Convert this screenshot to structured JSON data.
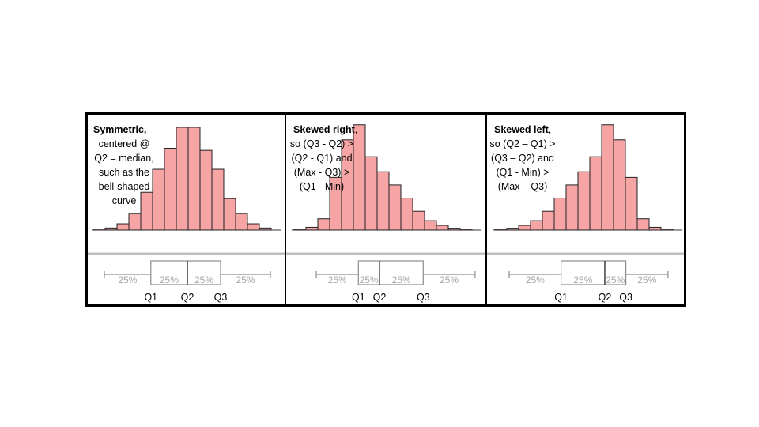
{
  "colors": {
    "bar_fill": "#f7a4a5",
    "bar_stroke": "#222222",
    "frame": "#000000",
    "divider": "#bfbfbf",
    "box_stroke": "#8c8c8c",
    "pct_text": "#a6a6a6",
    "label_text": "#000000"
  },
  "chart_data": [
    {
      "type": "bar",
      "title_bold": "Symmetric,",
      "title_rest": "",
      "caption_lines": [
        "centered @",
        "Q2 = median,",
        "such as the",
        "bell-shaped",
        "curve"
      ],
      "bins": 15,
      "values": [
        0.5,
        1,
        3,
        8,
        18,
        29,
        39,
        49,
        49,
        38,
        29,
        15,
        8,
        3,
        1
      ],
      "ymax": 52,
      "boxplot": {
        "min": 0.0,
        "q1": 1.4,
        "q2": 2.5,
        "q3": 3.5,
        "max": 5.0,
        "pct_labels": [
          "25%",
          "25%",
          "25%",
          "25%"
        ],
        "quartile_labels": [
          "Q1",
          "Q2",
          "Q3"
        ]
      }
    },
    {
      "type": "bar",
      "title_bold": "Skewed right",
      "title_rest": ",",
      "caption_lines": [
        "so (Q3 - Q2) >",
        "(Q2 - Q1) and",
        "(Max - Q3) >",
        "(Q1 - Min)"
      ],
      "bins": 15,
      "values": [
        0.5,
        1.5,
        6,
        28,
        48,
        56,
        39,
        31,
        24,
        17,
        10,
        5,
        2.5,
        1,
        0.5
      ],
      "ymax": 58,
      "boxplot": {
        "min": 0.0,
        "q1": 1.3,
        "q2": 1.95,
        "q3": 3.3,
        "max": 4.9,
        "pct_labels": [
          "25%",
          "25%",
          "25%",
          "25%"
        ],
        "quartile_labels": [
          "Q1",
          "Q2",
          "Q3"
        ]
      }
    },
    {
      "type": "bar",
      "title_bold": "Skewed left",
      "title_rest": ",",
      "caption_lines": [
        "so (Q2 – Q1) >",
        "(Q3 – Q2) and",
        "(Q1 - Min) >",
        "(Max – Q3)"
      ],
      "bins": 15,
      "values": [
        0.5,
        1,
        2.5,
        5,
        10,
        17,
        24,
        31,
        39,
        56,
        48,
        28,
        6,
        1.5,
        0.5
      ],
      "ymax": 58,
      "boxplot": {
        "min": 0.0,
        "q1": 1.6,
        "q2": 2.95,
        "q3": 3.6,
        "max": 4.9,
        "pct_labels": [
          "25%",
          "25%",
          "25%",
          "25%"
        ],
        "quartile_labels": [
          "Q1",
          "Q2",
          "Q3"
        ]
      }
    }
  ]
}
